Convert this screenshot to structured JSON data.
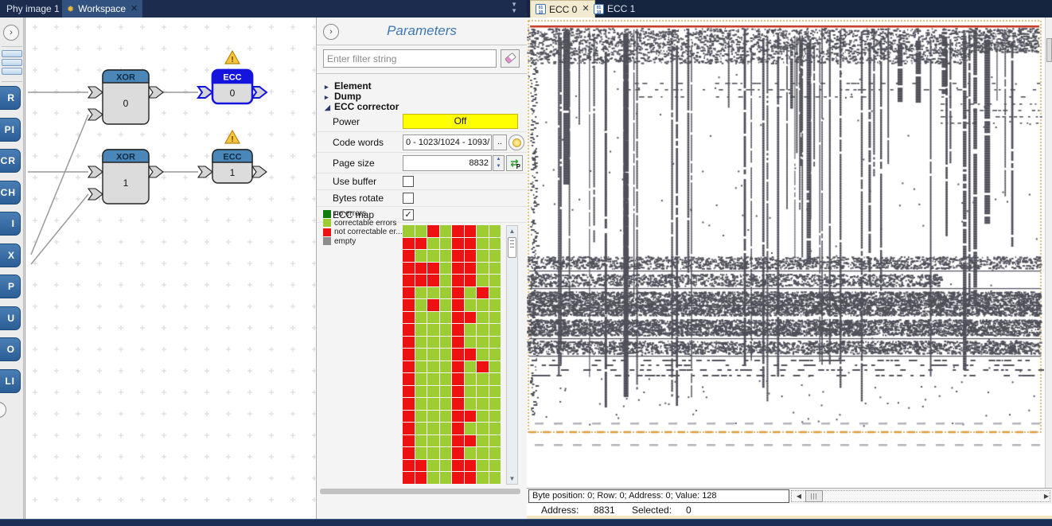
{
  "window": {
    "left_tabs": [
      {
        "label": "Phy image 1"
      },
      {
        "label": "Workspace"
      }
    ],
    "right_tabs": [
      {
        "label": "ECC 0"
      },
      {
        "label": "ECC 1"
      }
    ]
  },
  "icons": {
    "close": "✕",
    "chevron_right": "›",
    "sun": "✹",
    "up": "▲",
    "down": "▼",
    "left": "◀",
    "right": "▶",
    "check": "✓",
    "tree_collapsed": "▸",
    "tree_expanded": "◢",
    "double_chevron": "▼▼",
    "swap_arrows": "⇄",
    "grip": "|||"
  },
  "sidebar": {
    "buttons": [
      "R",
      "PI",
      "BCR",
      "BCH",
      "I",
      "X",
      "P",
      "U",
      "O",
      "LI"
    ]
  },
  "graph": {
    "nodes": [
      {
        "title": "XOR",
        "value": "0",
        "selected": false,
        "warning": false
      },
      {
        "title": "ECC",
        "value": "0",
        "selected": true,
        "warning": true
      },
      {
        "title": "XOR",
        "value": "1",
        "selected": false,
        "warning": false
      },
      {
        "title": "ECC",
        "value": "1",
        "selected": false,
        "warning": true
      }
    ],
    "warning_glyph": "!"
  },
  "parameters": {
    "title": "Parameters",
    "filter_placeholder": "Enter filter string",
    "tree": [
      {
        "label": "Element",
        "expanded": false
      },
      {
        "label": "Dump",
        "expanded": false
      },
      {
        "label": "ECC corrector",
        "expanded": true
      }
    ],
    "rows": {
      "power": {
        "label": "Power",
        "value": "Off",
        "color": "#ffff00"
      },
      "code_words": {
        "label": "Code words",
        "value": "0 - 1023/1024 - 1093/",
        "more_label": ".."
      },
      "page_size": {
        "label": "Page size",
        "value": "8832",
        "button_letter": "P"
      },
      "use_buffer": {
        "label": "Use buffer",
        "checked": false
      },
      "bytes_rotate": {
        "label": "Bytes rotate",
        "checked": false
      },
      "ecc_map": {
        "label": "ECC map",
        "checked": true
      }
    },
    "legend": [
      {
        "label": "no errors",
        "color": "#0e7d0e"
      },
      {
        "label": "correctable errors",
        "color": "#9dcd32"
      },
      {
        "label": "not correctable er...",
        "color": "#ee1111"
      },
      {
        "label": "empty",
        "color": "#8c8c8c"
      }
    ],
    "ecc_grid": {
      "colors": {
        "G": "#9dcd32",
        "R": "#ee1111"
      },
      "rows": [
        "GGRGRRGG",
        "RRGGRRGG",
        "RGGGRRGG",
        "RRRGRRGG",
        "RRRGRRGG",
        "RGGGRGRG",
        "RGRGRGGG",
        "RGGGRRGG",
        "RGGGRGGG",
        "RGGGRGGG",
        "RGGGRRGG",
        "RGGGRGRG",
        "RGGGRGGG",
        "RGGGRGGG",
        "RGGGRGGG",
        "RGGGRRGG",
        "RGGGRGGG",
        "RGGGRRGG",
        "RGGGRGGG",
        "RRGGRRGG",
        "RRGGRRGG"
      ]
    }
  },
  "viewer": {
    "status_box": "Byte position: 0; Row: 0; Address: 0; Value: 128",
    "address_label": "Address:",
    "address_value": "8831",
    "selected_label": "Selected:",
    "selected_value": "0",
    "bitmap": {
      "seed": 1337,
      "ink": "#50505a",
      "red_line": "#c53018",
      "dash_border": "#d09a40",
      "faint": "#b2b2ba"
    }
  }
}
